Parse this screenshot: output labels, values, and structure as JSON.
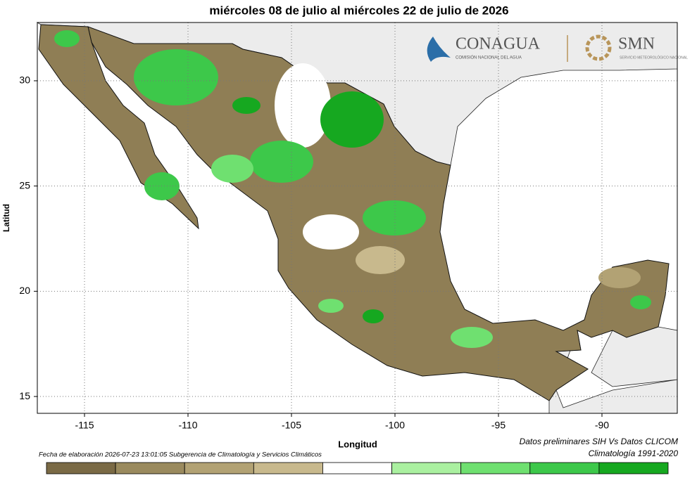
{
  "map": {
    "title": "miércoles 08 de julio al miércoles 22 de julio de 2026",
    "x_label": "Longitud",
    "y_label": "Latitud",
    "xlim": [
      -117.28,
      -86.36
    ],
    "ylim": [
      14.2,
      32.77
    ],
    "xticks": [
      -115,
      -110,
      -105,
      -100,
      -95,
      -90
    ],
    "yticks": [
      15,
      20,
      25,
      30
    ],
    "grid": true,
    "colorbar": [
      "#7a6a45",
      "#9a8a5e",
      "#b2a274",
      "#c8b98d",
      "#ffffff",
      "#aaf0a0",
      "#6fe070",
      "#3dc84a",
      "#16a820"
    ],
    "footer_left": "Fecha de elaboración 2026-07-23 13:01:05 Subgerencia de Climatología y Servicios Climáticos",
    "footer_right": [
      "Datos preliminares SIH Vs Datos CLICOM",
      "Climatología 1991-2020"
    ],
    "logos": {
      "conagua": "CONAGUA",
      "conagua_sub": "COMISIÓN NACIONAL DEL AGUA",
      "smn": "SMN",
      "smn_sub": "SERVICIO METEOROLÓGICO NACIONAL"
    }
  }
}
